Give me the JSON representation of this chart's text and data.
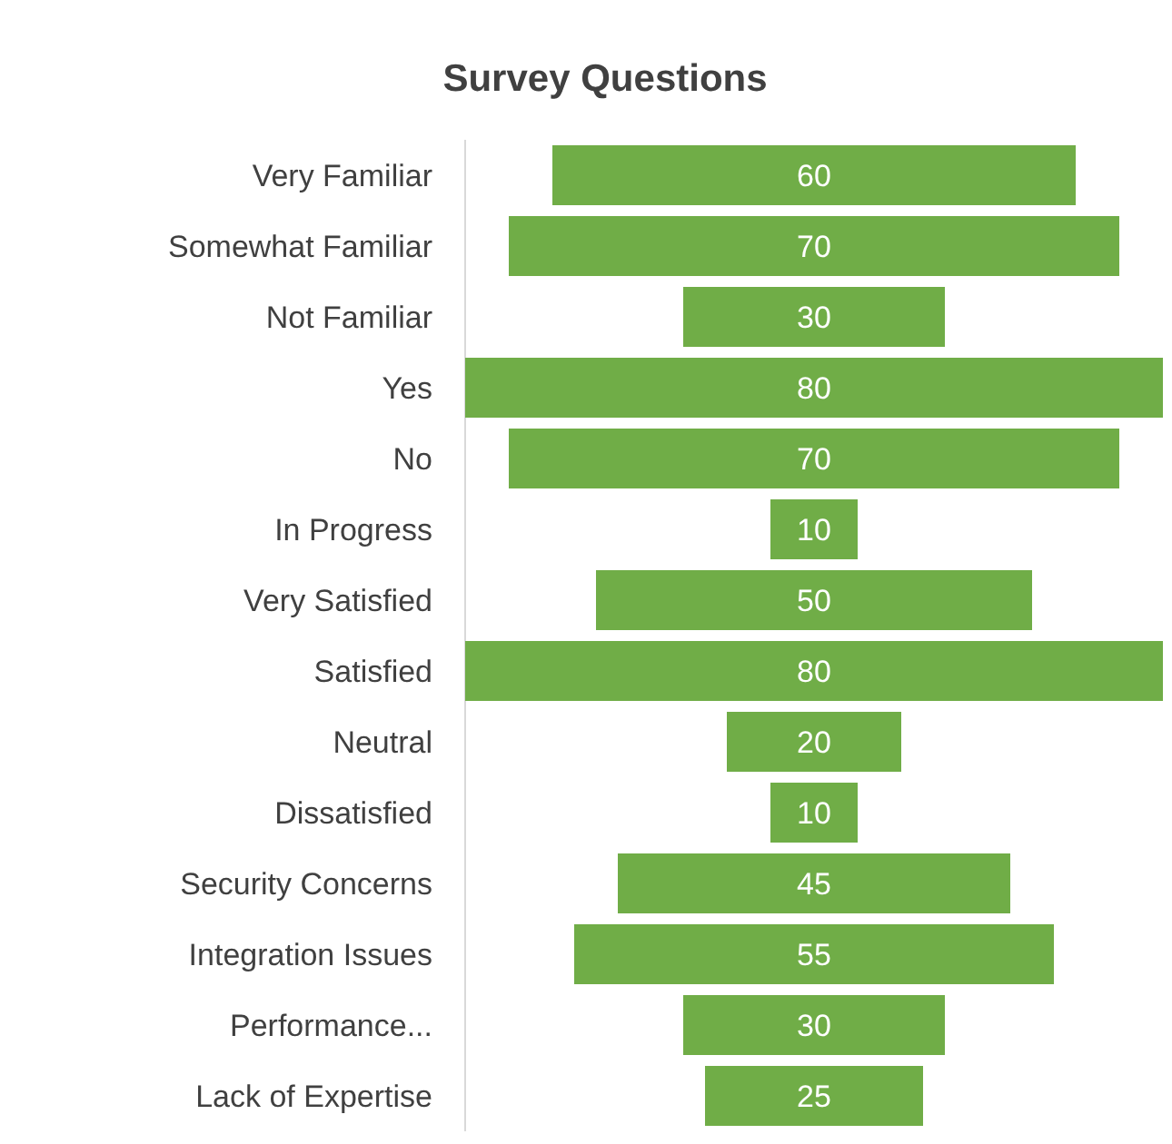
{
  "chart_data": {
    "type": "other",
    "title": "Survey Questions",
    "categories": [
      "Very Familiar",
      "Somewhat Familiar",
      "Not Familiar",
      "Yes",
      "No",
      "In Progress",
      "Very Satisfied",
      "Satisfied",
      "Neutral",
      "Dissatisfied",
      "Security Concerns",
      "Integration Issues",
      "Performance...",
      "Lack of Expertise"
    ],
    "values": [
      60,
      70,
      30,
      80,
      70,
      10,
      50,
      80,
      20,
      10,
      45,
      55,
      30,
      25
    ],
    "color": "#70ad47",
    "data_labels": true
  }
}
